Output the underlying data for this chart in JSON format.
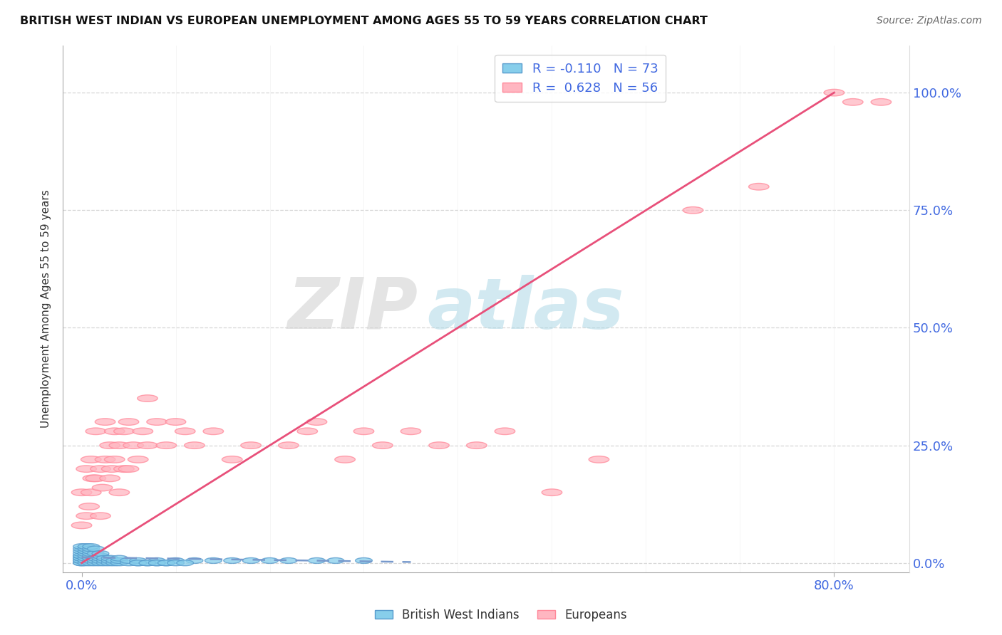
{
  "title": "BRITISH WEST INDIAN VS EUROPEAN UNEMPLOYMENT AMONG AGES 55 TO 59 YEARS CORRELATION CHART",
  "source": "Source: ZipAtlas.com",
  "ylabel": "Unemployment Among Ages 55 to 59 years",
  "y_tick_labels": [
    "0.0%",
    "25.0%",
    "50.0%",
    "75.0%",
    "100.0%"
  ],
  "y_ticks": [
    0.0,
    0.25,
    0.5,
    0.75,
    1.0
  ],
  "xlim": [
    -0.02,
    0.88
  ],
  "ylim": [
    -0.02,
    1.1
  ],
  "R_blue": -0.11,
  "N_blue": 73,
  "R_pink": 0.628,
  "N_pink": 56,
  "watermark_zip": "ZIP",
  "watermark_atlas": "atlas",
  "watermark_color_zip": "#DCDCDC",
  "watermark_color_atlas": "#ADD8E6",
  "background_color": "#FFFFFF",
  "blue_scatter_x": [
    0.0,
    0.0,
    0.0,
    0.0,
    0.0,
    0.0,
    0.0,
    0.0,
    0.0,
    0.0,
    0.0,
    0.0,
    0.005,
    0.005,
    0.005,
    0.005,
    0.005,
    0.005,
    0.005,
    0.005,
    0.01,
    0.01,
    0.01,
    0.01,
    0.01,
    0.01,
    0.01,
    0.01,
    0.015,
    0.015,
    0.015,
    0.015,
    0.015,
    0.02,
    0.02,
    0.02,
    0.02,
    0.02,
    0.025,
    0.025,
    0.025,
    0.03,
    0.03,
    0.03,
    0.035,
    0.035,
    0.04,
    0.04,
    0.04,
    0.05,
    0.05,
    0.06,
    0.06,
    0.07,
    0.08,
    0.08,
    0.09,
    0.1,
    0.12,
    0.14,
    0.16,
    0.18,
    0.2,
    0.22,
    0.25,
    0.27,
    0.3,
    0.06,
    0.07,
    0.08,
    0.09,
    0.1,
    0.11
  ],
  "blue_scatter_y": [
    0.0,
    0.0,
    0.005,
    0.005,
    0.01,
    0.01,
    0.015,
    0.015,
    0.02,
    0.025,
    0.03,
    0.035,
    0.0,
    0.005,
    0.01,
    0.015,
    0.02,
    0.025,
    0.03,
    0.035,
    0.0,
    0.005,
    0.01,
    0.015,
    0.02,
    0.025,
    0.03,
    0.035,
    0.0,
    0.005,
    0.01,
    0.02,
    0.03,
    0.0,
    0.005,
    0.01,
    0.015,
    0.02,
    0.0,
    0.005,
    0.01,
    0.0,
    0.005,
    0.01,
    0.0,
    0.005,
    0.0,
    0.005,
    0.01,
    0.0,
    0.005,
    0.0,
    0.005,
    0.0,
    0.0,
    0.005,
    0.0,
    0.005,
    0.005,
    0.005,
    0.005,
    0.005,
    0.005,
    0.005,
    0.005,
    0.005,
    0.005,
    0.0,
    0.0,
    0.0,
    0.0,
    0.0,
    0.0
  ],
  "pink_scatter_x": [
    0.0,
    0.0,
    0.005,
    0.005,
    0.008,
    0.01,
    0.01,
    0.012,
    0.015,
    0.015,
    0.02,
    0.02,
    0.022,
    0.025,
    0.025,
    0.03,
    0.03,
    0.032,
    0.035,
    0.035,
    0.04,
    0.04,
    0.045,
    0.045,
    0.05,
    0.05,
    0.055,
    0.06,
    0.065,
    0.07,
    0.07,
    0.08,
    0.09,
    0.1,
    0.11,
    0.12,
    0.14,
    0.16,
    0.18,
    0.22,
    0.24,
    0.25,
    0.28,
    0.3,
    0.32,
    0.35,
    0.38,
    0.42,
    0.45,
    0.5,
    0.55,
    0.65,
    0.72,
    0.8,
    0.82,
    0.85
  ],
  "pink_scatter_y": [
    0.08,
    0.15,
    0.1,
    0.2,
    0.12,
    0.15,
    0.22,
    0.18,
    0.18,
    0.28,
    0.1,
    0.2,
    0.16,
    0.22,
    0.3,
    0.18,
    0.25,
    0.2,
    0.22,
    0.28,
    0.15,
    0.25,
    0.2,
    0.28,
    0.2,
    0.3,
    0.25,
    0.22,
    0.28,
    0.25,
    0.35,
    0.3,
    0.25,
    0.3,
    0.28,
    0.25,
    0.28,
    0.22,
    0.25,
    0.25,
    0.28,
    0.3,
    0.22,
    0.28,
    0.25,
    0.28,
    0.25,
    0.25,
    0.28,
    0.15,
    0.22,
    0.75,
    0.8,
    1.0,
    0.98,
    0.98
  ],
  "pink_trendline_x": [
    0.0,
    0.8
  ],
  "pink_trendline_y": [
    0.0,
    1.0
  ],
  "blue_trendline_x": [
    0.0,
    0.35
  ],
  "blue_trendline_y": [
    0.012,
    0.002
  ]
}
